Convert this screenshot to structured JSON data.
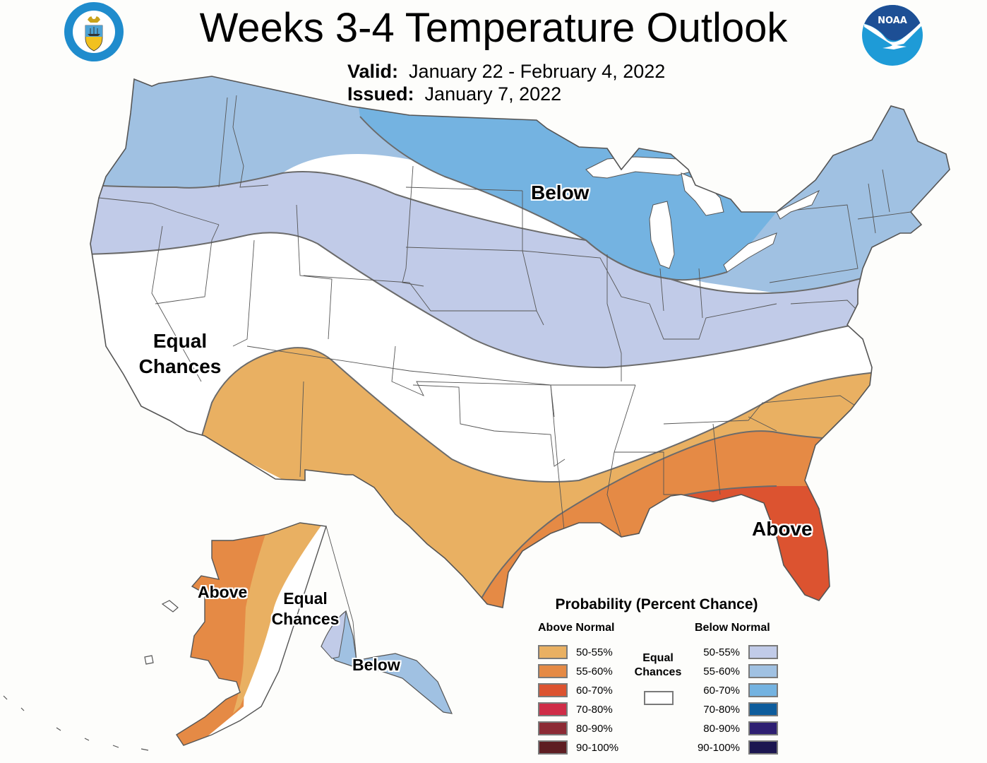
{
  "header": {
    "title": "Weeks 3-4 Temperature Outlook",
    "valid_label": "Valid:",
    "valid_value": "January 22 - February 4, 2022",
    "issued_label": "Issued:",
    "issued_value": "January 7, 2022",
    "left_logo": "department-of-commerce-seal",
    "right_logo": "noaa-logo",
    "noaa_text": "NOAA"
  },
  "map": {
    "labels": {
      "conus_below": "Below",
      "conus_equal_line1": "Equal",
      "conus_equal_line2": "Chances",
      "conus_above": "Above",
      "ak_above": "Above",
      "ak_equal_line1": "Equal",
      "ak_equal_line2": "Chances",
      "ak_below": "Below"
    },
    "regions": [
      {
        "name": "northern-tier",
        "category": "Below Normal",
        "probability": "55-60%"
      },
      {
        "name": "upper-midwest-great-lakes",
        "category": "Below Normal",
        "probability": "60-70%"
      },
      {
        "name": "central-band",
        "category": "Below Normal",
        "probability": "50-55%"
      },
      {
        "name": "west-central-and-mid-south",
        "category": "Equal Chances",
        "probability": ""
      },
      {
        "name": "southwest-texas-southeast",
        "category": "Above Normal",
        "probability": "50-55%"
      },
      {
        "name": "gulf-coast",
        "category": "Above Normal",
        "probability": "55-60%"
      },
      {
        "name": "florida",
        "category": "Above Normal",
        "probability": "60-70%"
      },
      {
        "name": "western-alaska",
        "category": "Above Normal",
        "probability": "55-60%"
      },
      {
        "name": "central-alaska-band",
        "category": "Above Normal",
        "probability": "50-55%"
      },
      {
        "name": "interior-alaska",
        "category": "Equal Chances",
        "probability": ""
      },
      {
        "name": "southeast-alaska",
        "category": "Below Normal",
        "probability": "55-60%"
      }
    ]
  },
  "legend": {
    "title": "Probability (Percent Chance)",
    "above_heading": "Above Normal",
    "below_heading": "Below Normal",
    "equal_line1": "Equal",
    "equal_line2": "Chances",
    "above": [
      {
        "label": "50-55%",
        "color": "#e9b062"
      },
      {
        "label": "55-60%",
        "color": "#e58a45"
      },
      {
        "label": "60-70%",
        "color": "#dc5330"
      },
      {
        "label": "70-80%",
        "color": "#cf2c47"
      },
      {
        "label": "80-90%",
        "color": "#8c2a35"
      },
      {
        "label": "90-100%",
        "color": "#5e1d22"
      }
    ],
    "below": [
      {
        "label": "50-55%",
        "color": "#c1cbe8"
      },
      {
        "label": "55-60%",
        "color": "#a0c1e2"
      },
      {
        "label": "60-70%",
        "color": "#74b3e1"
      },
      {
        "label": "70-80%",
        "color": "#0d5c9c"
      },
      {
        "label": "80-90%",
        "color": "#2e1f72"
      },
      {
        "label": "90-100%",
        "color": "#1c1650"
      }
    ]
  }
}
